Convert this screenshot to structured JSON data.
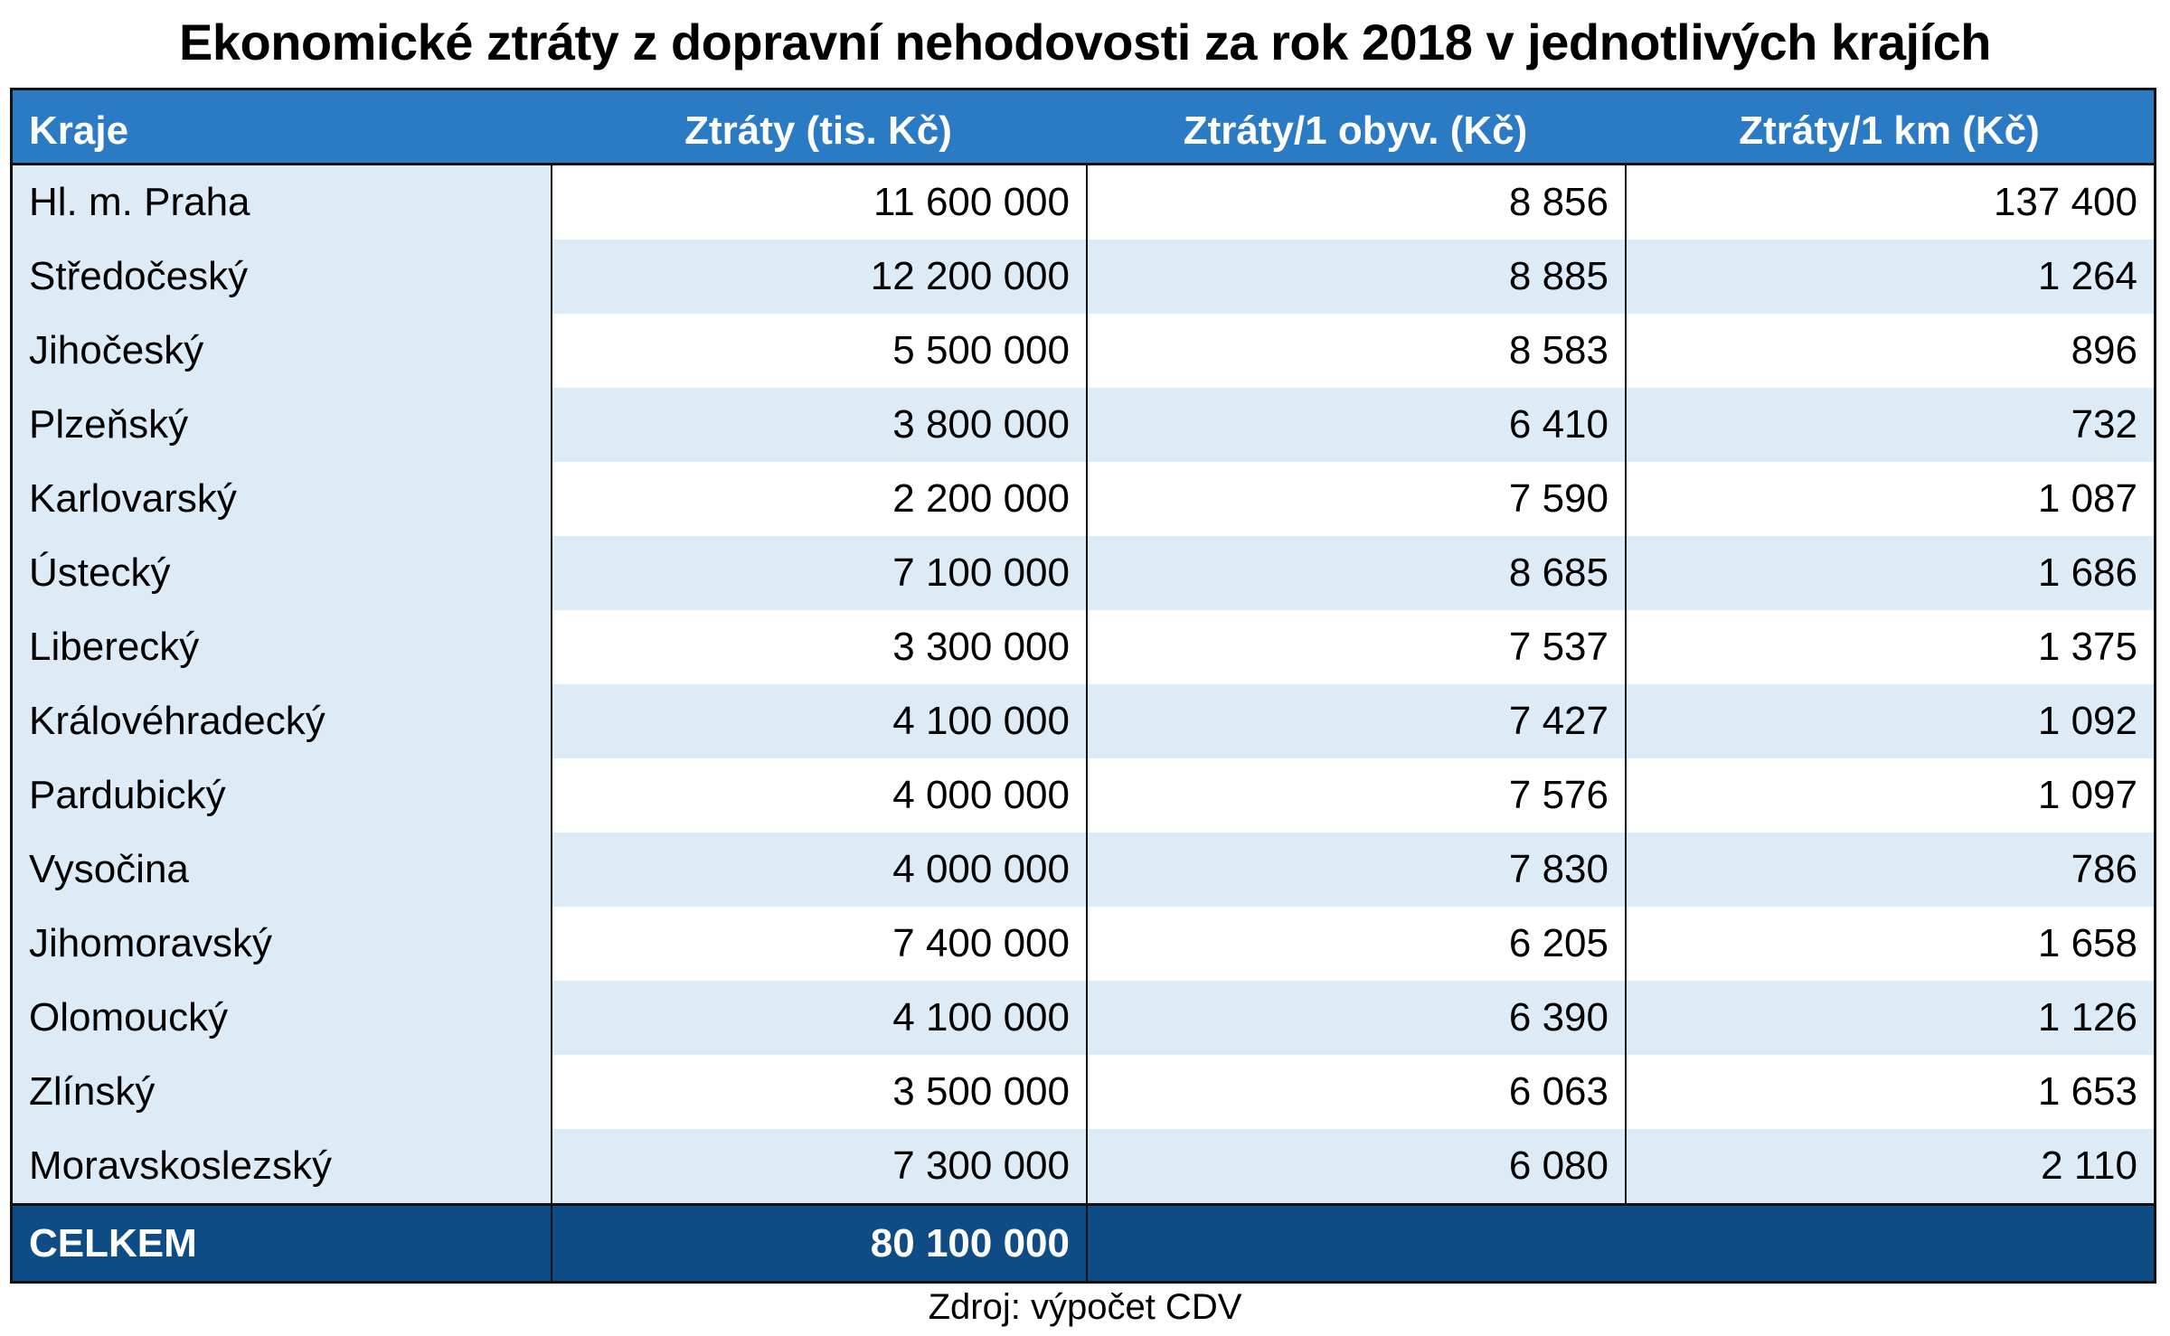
{
  "title": "Ekonomické ztráty z dopravní nehodovosti za rok 2018 v jednotlivých krajích",
  "colors": {
    "header_bg": "#2A7AC4",
    "stripe_bg": "#DDEBF7",
    "total_bg": "#0F4C85",
    "border": "#111111"
  },
  "table": {
    "headers": [
      "Kraje",
      "Ztráty (tis. Kč)",
      "Ztráty/1 obyv. (Kč)",
      "Ztráty/1 km (Kč)"
    ],
    "rows": [
      [
        "Hl. m. Praha",
        "11 600 000",
        "8 856",
        "137 400"
      ],
      [
        "Středočeský",
        "12 200 000",
        "8 885",
        "1 264"
      ],
      [
        "Jihočeský",
        "5 500 000",
        "8 583",
        "896"
      ],
      [
        "Plzeňský",
        "3 800 000",
        "6 410",
        "732"
      ],
      [
        "Karlovarský",
        "2 200 000",
        "7 590",
        "1 087"
      ],
      [
        "Ústecký",
        "7 100 000",
        "8 685",
        "1 686"
      ],
      [
        "Liberecký",
        "3 300 000",
        "7 537",
        "1 375"
      ],
      [
        "Královéhradecký",
        "4 100 000",
        "7 427",
        "1 092"
      ],
      [
        "Pardubický",
        "4 000 000",
        "7 576",
        "1 097"
      ],
      [
        "Vysočina",
        "4 000 000",
        "7 830",
        "786"
      ],
      [
        "Jihomoravský",
        "7 400 000",
        "6 205",
        "1 658"
      ],
      [
        "Olomoucký",
        "4 100 000",
        "6 390",
        "1 126"
      ],
      [
        "Zlínský",
        "3 500 000",
        "6 063",
        "1 653"
      ],
      [
        "Moravskoslezský",
        "7 300 000",
        "6 080",
        "2 110"
      ]
    ],
    "total": {
      "label": "CELKEM",
      "value": "80 100 000"
    }
  },
  "footer": "Zdroj: výpočet CDV"
}
